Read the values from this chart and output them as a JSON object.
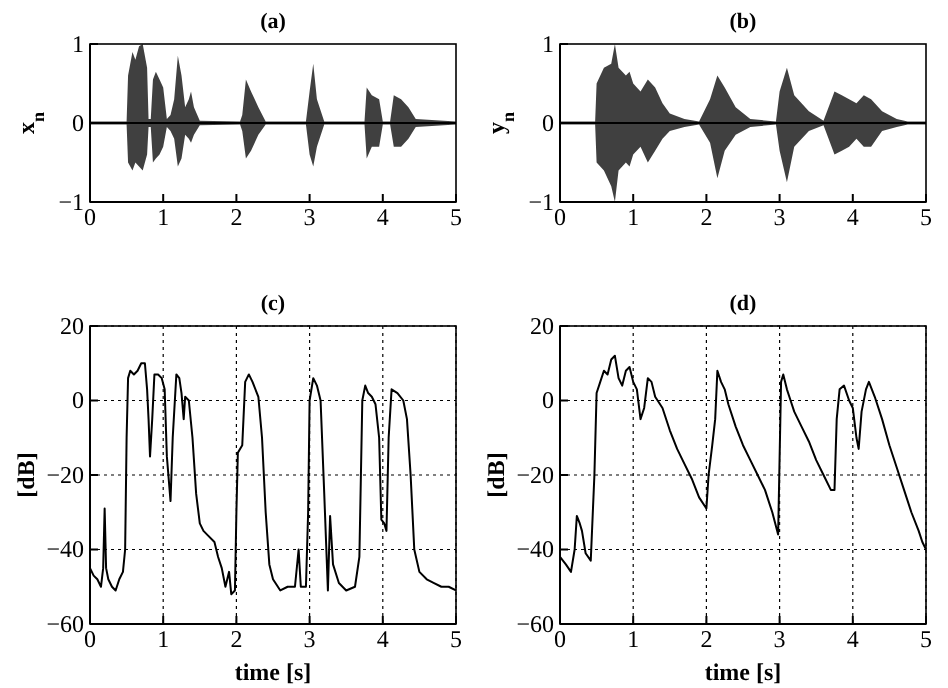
{
  "chart_data": [
    {
      "type": "line",
      "title": "(a)",
      "ylabel": "x$_{n}$",
      "xlim": [
        0,
        5
      ],
      "ylim": [
        -1,
        1
      ],
      "xticks": [
        0,
        1,
        2,
        3,
        4,
        5
      ],
      "yticks": [
        -1,
        0,
        1
      ],
      "grid": false,
      "x": [
        0,
        0.5,
        0.52,
        0.58,
        0.62,
        0.67,
        0.72,
        0.78,
        0.8,
        0.83,
        0.86,
        0.9,
        0.95,
        1.0,
        1.05,
        1.1,
        1.15,
        1.2,
        1.25,
        1.3,
        1.35,
        1.38,
        1.42,
        1.5,
        2.05,
        2.08,
        2.13,
        2.2,
        2.3,
        2.4,
        2.95,
        3.0,
        3.05,
        3.1,
        3.2,
        3.75,
        3.78,
        3.85,
        3.95,
        4.0,
        4.1,
        4.15,
        4.25,
        4.35,
        4.45,
        5
      ],
      "series": [
        {
          "color": "#000000",
          "values": [
            0,
            0,
            0,
            0,
            0,
            0,
            0,
            0,
            0,
            0,
            0,
            0,
            0,
            0,
            0,
            0,
            0,
            0,
            0,
            0,
            0,
            0,
            0,
            0,
            0,
            0,
            0,
            0,
            0,
            0,
            0,
            0,
            0,
            0,
            0,
            0,
            0,
            0,
            0,
            0,
            0,
            0,
            0,
            0,
            0,
            0
          ],
          "upper": [
            0.02,
            0.02,
            0.6,
            0.9,
            0.8,
            0.97,
            1.0,
            0.7,
            0.05,
            0.05,
            0.55,
            0.65,
            0.55,
            0.45,
            0.05,
            0.1,
            0.3,
            0.85,
            0.6,
            0.2,
            0.3,
            0.4,
            0.2,
            0.03,
            0.02,
            0.1,
            0.55,
            0.4,
            0.2,
            0.02,
            0.02,
            0.4,
            0.75,
            0.3,
            0.02,
            0.02,
            0.45,
            0.35,
            0.3,
            0.02,
            0.02,
            0.35,
            0.3,
            0.2,
            0.05,
            0.02
          ],
          "lower": [
            -0.02,
            -0.02,
            -0.5,
            -0.6,
            -0.5,
            -0.55,
            -0.6,
            -0.4,
            -0.05,
            -0.05,
            -0.5,
            -0.45,
            -0.4,
            -0.3,
            -0.05,
            -0.1,
            -0.2,
            -0.55,
            -0.45,
            -0.15,
            -0.2,
            -0.25,
            -0.15,
            -0.03,
            -0.02,
            -0.1,
            -0.45,
            -0.35,
            -0.15,
            -0.02,
            -0.02,
            -0.4,
            -0.55,
            -0.3,
            -0.02,
            -0.02,
            -0.45,
            -0.3,
            -0.3,
            -0.02,
            -0.02,
            -0.3,
            -0.3,
            -0.2,
            -0.05,
            -0.02
          ]
        }
      ]
    },
    {
      "type": "line",
      "title": "(b)",
      "ylabel": "y$_{n}$",
      "xlim": [
        0,
        5
      ],
      "ylim": [
        -1,
        1
      ],
      "xticks": [
        0,
        1,
        2,
        3,
        4,
        5
      ],
      "yticks": [
        -1,
        0,
        1
      ],
      "grid": false,
      "x": [
        0,
        0.48,
        0.5,
        0.6,
        0.7,
        0.75,
        0.8,
        0.9,
        0.95,
        1.0,
        1.1,
        1.2,
        1.3,
        1.4,
        1.5,
        1.7,
        1.9,
        2.05,
        2.15,
        2.25,
        2.4,
        2.6,
        2.95,
        3.0,
        3.1,
        3.2,
        3.4,
        3.6,
        3.75,
        3.85,
        3.95,
        4.05,
        4.15,
        4.25,
        4.4,
        4.6,
        4.75,
        5
      ],
      "series": [
        {
          "color": "#000000",
          "values": [
            0,
            0,
            0,
            0,
            0,
            0,
            0,
            0,
            0,
            0,
            0,
            0,
            0,
            0,
            0,
            0,
            0,
            0,
            0,
            0,
            0,
            0,
            0,
            0,
            0,
            0,
            0,
            0,
            0,
            0,
            0,
            0,
            0,
            0,
            0,
            0,
            0,
            0
          ],
          "upper": [
            0.02,
            0.02,
            0.5,
            0.7,
            0.75,
            1.0,
            0.7,
            0.6,
            0.65,
            0.5,
            0.4,
            0.55,
            0.45,
            0.25,
            0.12,
            0.05,
            0.02,
            0.3,
            0.6,
            0.45,
            0.2,
            0.05,
            0.02,
            0.4,
            0.7,
            0.35,
            0.15,
            0.03,
            0.4,
            0.35,
            0.3,
            0.25,
            0.35,
            0.3,
            0.15,
            0.05,
            0.02,
            0.02
          ],
          "lower": [
            -0.02,
            -0.02,
            -0.5,
            -0.6,
            -0.8,
            -1.0,
            -0.6,
            -0.5,
            -0.55,
            -0.4,
            -0.3,
            -0.5,
            -0.35,
            -0.2,
            -0.1,
            -0.05,
            -0.02,
            -0.25,
            -0.7,
            -0.35,
            -0.15,
            -0.05,
            -0.02,
            -0.35,
            -0.75,
            -0.3,
            -0.1,
            -0.03,
            -0.4,
            -0.35,
            -0.3,
            -0.2,
            -0.3,
            -0.3,
            -0.1,
            -0.05,
            -0.02,
            -0.02
          ]
        }
      ]
    },
    {
      "type": "line",
      "title": "(c)",
      "xlabel": "time [s]",
      "ylabel": "[dB]",
      "xlim": [
        0,
        5
      ],
      "ylim": [
        -60,
        20
      ],
      "xticks": [
        0,
        1,
        2,
        3,
        4,
        5
      ],
      "yticks": [
        -60,
        -40,
        -20,
        0,
        20
      ],
      "grid": true,
      "x": [
        0,
        0.05,
        0.1,
        0.15,
        0.18,
        0.2,
        0.22,
        0.25,
        0.3,
        0.35,
        0.4,
        0.45,
        0.48,
        0.5,
        0.52,
        0.55,
        0.6,
        0.65,
        0.7,
        0.75,
        0.78,
        0.8,
        0.82,
        0.85,
        0.88,
        0.93,
        0.98,
        1.02,
        1.05,
        1.1,
        1.13,
        1.18,
        1.22,
        1.25,
        1.28,
        1.3,
        1.35,
        1.4,
        1.45,
        1.5,
        1.55,
        1.6,
        1.7,
        1.75,
        1.8,
        1.85,
        1.9,
        1.93,
        1.98,
        2.0,
        2.02,
        2.08,
        2.12,
        2.17,
        2.22,
        2.3,
        2.35,
        2.4,
        2.45,
        2.5,
        2.6,
        2.7,
        2.8,
        2.85,
        2.88,
        2.95,
        2.98,
        3.0,
        3.05,
        3.1,
        3.15,
        3.2,
        3.25,
        3.28,
        3.32,
        3.4,
        3.5,
        3.62,
        3.68,
        3.72,
        3.76,
        3.8,
        3.85,
        3.9,
        3.95,
        3.98,
        4.02,
        4.05,
        4.08,
        4.12,
        4.2,
        4.28,
        4.33,
        4.38,
        4.43,
        4.5,
        4.6,
        4.7,
        4.8,
        4.9,
        5.0
      ],
      "series": [
        {
          "color": "#000000",
          "values": [
            -45,
            -47,
            -48,
            -50,
            -45,
            -29,
            -45,
            -48,
            -50,
            -51,
            -48,
            -46,
            -40,
            -10,
            6,
            8,
            7,
            8,
            10,
            10,
            3,
            -5,
            -15,
            -5,
            7,
            7,
            6,
            3,
            -15,
            -27,
            -10,
            7,
            6,
            2,
            -5,
            1,
            0,
            -10,
            -25,
            -33,
            -35,
            -36,
            -38,
            -42,
            -45,
            -50,
            -46,
            -52,
            -51,
            -30,
            -14,
            -12,
            5,
            7,
            5,
            1,
            -10,
            -30,
            -44,
            -48,
            -51,
            -50,
            -50,
            -40,
            -50,
            -50,
            -30,
            0,
            6,
            4,
            0,
            -25,
            -51,
            -31,
            -44,
            -49,
            -51,
            -50,
            -42,
            0,
            4,
            2,
            1,
            -1,
            -10,
            -32,
            -33,
            -35,
            -10,
            3,
            2,
            0,
            -5,
            -20,
            -40,
            -46,
            -48,
            -49,
            -50,
            -50,
            -51
          ]
        }
      ]
    },
    {
      "type": "line",
      "title": "(d)",
      "xlabel": "time [s]",
      "ylabel": "[dB]",
      "xlim": [
        0,
        5
      ],
      "ylim": [
        -60,
        20
      ],
      "xticks": [
        0,
        1,
        2,
        3,
        4,
        5
      ],
      "yticks": [
        -60,
        -40,
        -20,
        0,
        20
      ],
      "grid": true,
      "x": [
        0,
        0.08,
        0.15,
        0.2,
        0.23,
        0.27,
        0.3,
        0.35,
        0.42,
        0.47,
        0.5,
        0.55,
        0.6,
        0.65,
        0.7,
        0.75,
        0.8,
        0.85,
        0.9,
        0.95,
        1.0,
        1.05,
        1.1,
        1.15,
        1.2,
        1.25,
        1.3,
        1.4,
        1.5,
        1.6,
        1.7,
        1.8,
        1.9,
        2.0,
        2.03,
        2.08,
        2.12,
        2.15,
        2.2,
        2.25,
        2.3,
        2.4,
        2.5,
        2.6,
        2.7,
        2.8,
        2.9,
        2.98,
        3.02,
        3.05,
        3.1,
        3.15,
        3.2,
        3.3,
        3.4,
        3.5,
        3.6,
        3.7,
        3.75,
        3.78,
        3.82,
        3.88,
        3.95,
        4.0,
        4.05,
        4.08,
        4.12,
        4.18,
        4.22,
        4.3,
        4.4,
        4.5,
        4.6,
        4.7,
        4.8,
        4.9,
        4.95,
        5.0
      ],
      "series": [
        {
          "color": "#000000",
          "values": [
            -42,
            -44,
            -46,
            -40,
            -31,
            -33,
            -35,
            -41,
            -43,
            -20,
            2,
            5,
            8,
            7,
            11,
            12,
            6,
            4,
            8,
            9,
            5,
            3,
            -5,
            -2,
            6,
            5,
            1,
            -2,
            -8,
            -13,
            -17,
            -21,
            -26,
            -29,
            -20,
            -12,
            -5,
            8,
            5,
            3,
            -1,
            -7,
            -12,
            -16,
            -20,
            -24,
            -30,
            -36,
            5,
            7,
            3,
            0,
            -3,
            -7,
            -11,
            -16,
            -20,
            -24,
            -24,
            -5,
            3,
            4,
            0,
            -2,
            -10,
            -13,
            -3,
            3,
            5,
            1,
            -5,
            -12,
            -18,
            -24,
            -30,
            -35,
            -38,
            -40
          ]
        }
      ]
    }
  ]
}
